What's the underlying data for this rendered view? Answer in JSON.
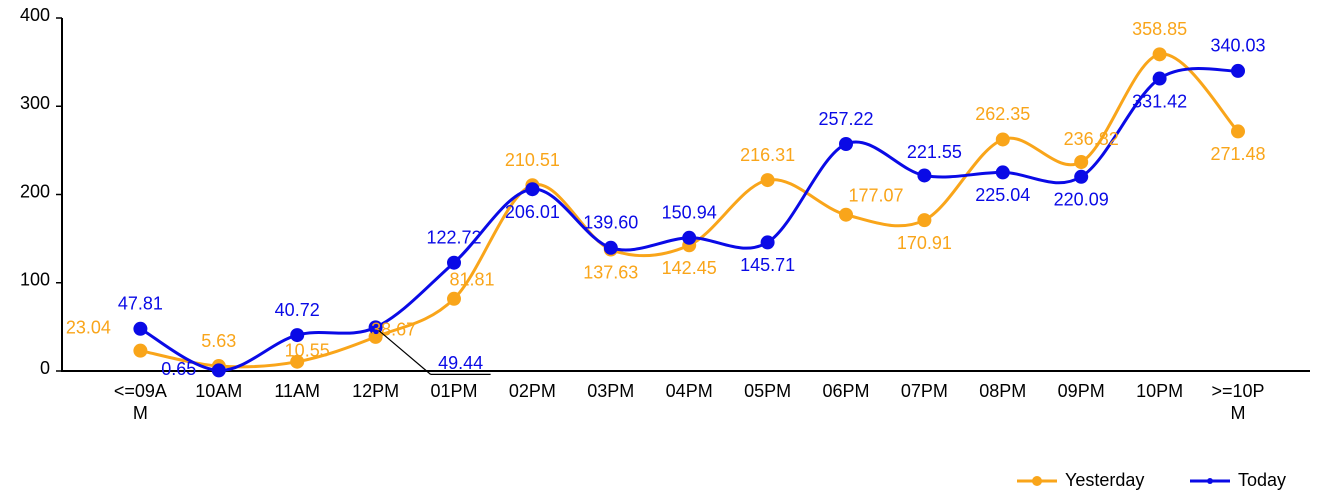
{
  "chart_data": {
    "type": "line",
    "categories": [
      "<=09AM",
      "10AM",
      "11AM",
      "12PM",
      "01PM",
      "02PM",
      "03PM",
      "04PM",
      "05PM",
      "06PM",
      "07PM",
      "08PM",
      "09PM",
      "10PM",
      ">=10PM"
    ],
    "series": [
      {
        "name": "Yesterday",
        "color": "#f9a51a",
        "values": [
          23.04,
          5.63,
          10.55,
          38.67,
          81.81,
          210.51,
          137.63,
          142.45,
          216.31,
          177.07,
          170.91,
          262.35,
          236.82,
          358.85,
          271.48
        ],
        "value_labels": [
          "23.04",
          "5.63",
          "10.55",
          "38.67",
          "81.81",
          "210.51",
          "137.63",
          "142.45",
          "216.31",
          "177.07",
          "170.91",
          "262.35",
          "236.82",
          "358.85",
          "271.48"
        ]
      },
      {
        "name": "Today",
        "color": "#0a0ae6",
        "values": [
          47.81,
          0.65,
          40.72,
          49.44,
          122.72,
          206.01,
          139.6,
          150.94,
          145.71,
          257.22,
          221.55,
          225.04,
          220.09,
          331.42,
          340.03
        ],
        "value_labels": [
          "47.81",
          "0.65",
          "40.72",
          "49.44",
          "122.72",
          "206.01",
          "139.60",
          "150.94",
          "145.71",
          "257.22",
          "221.55",
          "225.04",
          "220.09",
          "331.42",
          "340.03"
        ]
      }
    ],
    "ylim": [
      0,
      400
    ],
    "yticks": [
      0,
      100,
      200,
      300,
      400
    ],
    "grid": false,
    "legend": "lower right",
    "smooth": true
  }
}
